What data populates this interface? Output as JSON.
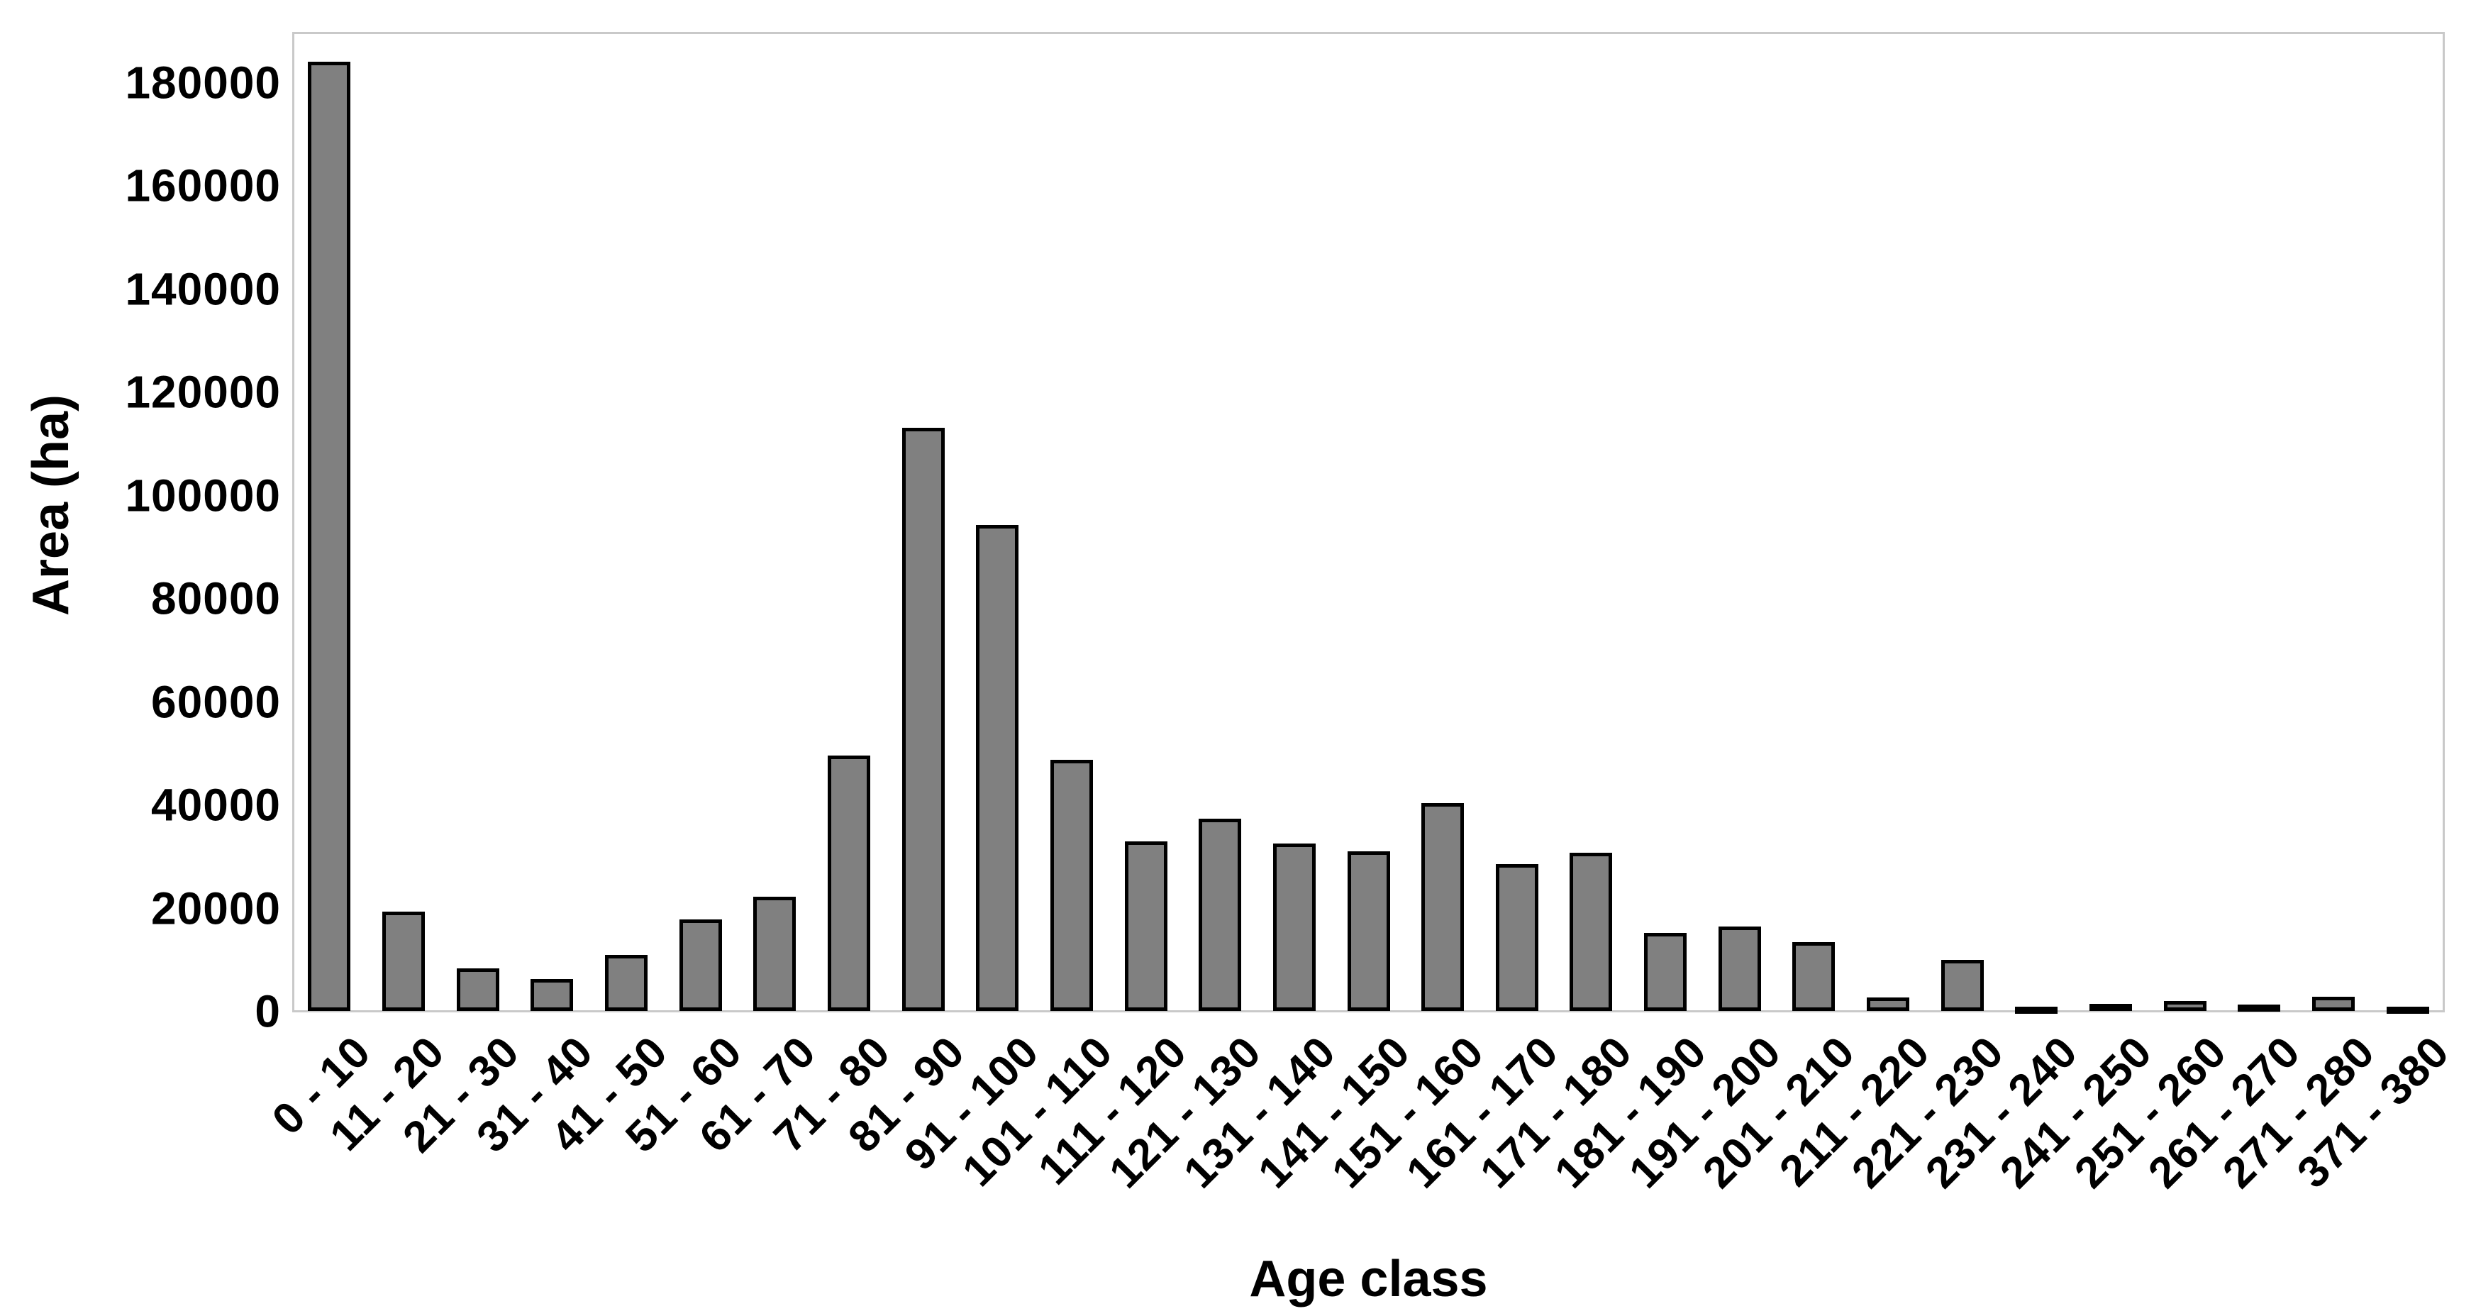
{
  "chart_data": {
    "type": "bar",
    "title": "",
    "xlabel": "Age class",
    "ylabel": "Area (ha)",
    "categories": [
      "0 - 10",
      "11 - 20",
      "21 - 30",
      "31 - 40",
      "41 - 50",
      "51 - 60",
      "61 - 70",
      "71 - 80",
      "81 - 90",
      "91 - 100",
      "101 - 110",
      "111 - 120",
      "121 - 130",
      "131 - 140",
      "141 - 150",
      "151 - 160",
      "161 - 170",
      "171 - 180",
      "181 - 190",
      "191 - 200",
      "201 - 210",
      "211 - 220",
      "221 - 230",
      "231 - 240",
      "241 - 250",
      "251 - 260",
      "261 - 270",
      "271 - 280",
      "371 - 380"
    ],
    "values": [
      184000,
      19200,
      8200,
      6200,
      10800,
      17700,
      22100,
      49500,
      113000,
      94200,
      48600,
      32900,
      37300,
      32400,
      30900,
      40300,
      28500,
      30600,
      15100,
      16300,
      13300,
      2600,
      9900,
      800,
      1400,
      1900,
      1200,
      2700,
      800
    ],
    "y_ticks": [
      0,
      20000,
      40000,
      60000,
      80000,
      100000,
      120000,
      140000,
      160000,
      180000
    ],
    "ylim": [
      0,
      190000
    ],
    "grid": false,
    "legend": false,
    "bar_color": "#808080",
    "bar_border_color": "#000000",
    "plot_border_color": "#c9c9c9",
    "text_color": "#000000"
  }
}
